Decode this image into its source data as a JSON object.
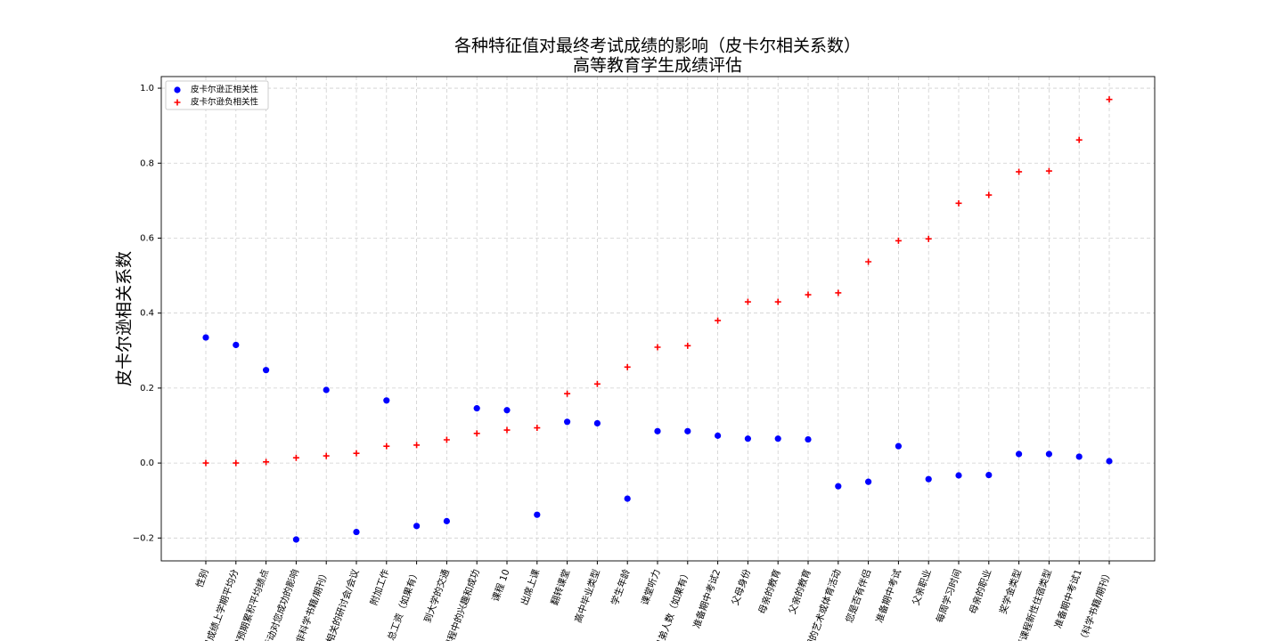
{
  "chart_data": {
    "type": "scatter",
    "title": "各种特征值对最终考试成绩的影响（皮卡尔相关系数）",
    "subtitle": "高等教育学生成绩评估",
    "y_label": "皮卡尔逊相关系数",
    "categories": [
      "性别",
      "兄成绩上学期平均分",
      "对预期累积平均绩点",
      "活动对您成功的影响",
      "非科学书籍/期刊）",
      "相关的研讨会/会议",
      "附加工作",
      "总工资（如果有）",
      "到大学的交通",
      "课程中的兴趣和成功",
      "课程 10",
      "出席上课",
      "翻转课堂",
      "高中毕业类型",
      "学生年龄",
      "课堂听力",
      "兄弟人数（如果有）",
      "准备期中考试2",
      "父母身份",
      "母亲的教育",
      "父亲的教育",
      "期的艺术或体育活动",
      "您是否有伴侣",
      "准备期中考试",
      "父亲职业",
      "每周学习时间",
      "母亲的职业",
      "奖学金类型",
      "董课程新性住宿类型",
      "准备期中考试1",
      "（科学书籍/期刊）"
    ],
    "series": [
      {
        "name": "皮卡尔逊正相关性",
        "color": "#0000ff",
        "marker": "circle",
        "values": [
          0.335,
          0.315,
          0.248,
          -0.204,
          0.195,
          -0.184,
          0.167,
          -0.168,
          -0.155,
          0.146,
          0.141,
          -0.138,
          0.11,
          0.106,
          -0.095,
          0.085,
          0.085,
          0.073,
          0.065,
          0.065,
          0.063,
          -0.062,
          -0.05,
          0.045,
          -0.043,
          -0.033,
          -0.032,
          0.024,
          0.024,
          0.017,
          0.005
        ]
      },
      {
        "name": "皮卡尔逊负相关性",
        "color": "#ff0000",
        "marker": "plus",
        "values": [
          0.0,
          0.0,
          0.003,
          0.014,
          0.019,
          0.026,
          0.045,
          0.048,
          0.062,
          0.079,
          0.088,
          0.094,
          0.185,
          0.211,
          0.256,
          0.309,
          0.313,
          0.38,
          0.43,
          0.43,
          0.449,
          0.454,
          0.537,
          0.593,
          0.598,
          0.693,
          0.715,
          0.777,
          0.779,
          0.862,
          0.97
        ]
      }
    ],
    "ylim": [
      -0.261,
      1.031
    ],
    "yticks": [
      {
        "value": -0.2,
        "label": "−0.2"
      },
      {
        "value": 0,
        "label": "0.0"
      },
      0.2,
      0.4,
      0.6,
      0.8,
      {
        "value": 1,
        "label": "1.0"
      }
    ],
    "grid": true,
    "legend": "upper left"
  }
}
